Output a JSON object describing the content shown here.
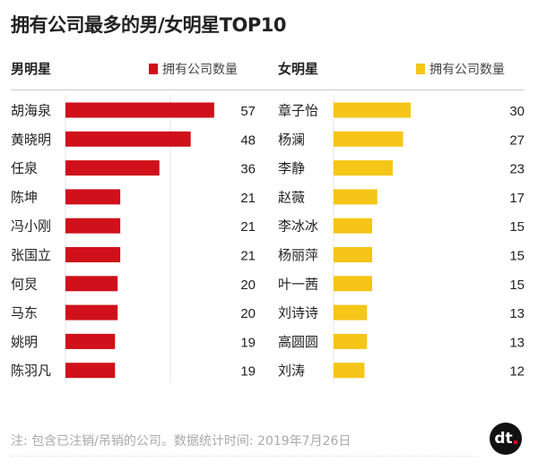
{
  "chart_data": [
    {
      "type": "bar",
      "orientation": "horizontal",
      "group_label": "男明星",
      "legend": "拥有公司数量",
      "color": "#d0101b",
      "categories": [
        "胡海泉",
        "黄晓明",
        "任泉",
        "陈坤",
        "冯小刚",
        "张国立",
        "何炅",
        "马东",
        "姚明",
        "陈羽凡"
      ],
      "values": [
        57,
        48,
        36,
        21,
        21,
        21,
        20,
        20,
        19,
        19
      ]
    },
    {
      "type": "bar",
      "orientation": "horizontal",
      "group_label": "女明星",
      "legend": "拥有公司数量",
      "color": "#f5c518",
      "categories": [
        "章子怡",
        "杨澜",
        "李静",
        "赵薇",
        "李冰冰",
        "杨丽萍",
        "叶一茜",
        "刘诗诗",
        "高圆圆",
        "刘涛"
      ],
      "values": [
        30,
        27,
        23,
        17,
        15,
        15,
        15,
        13,
        13,
        12
      ]
    }
  ],
  "title": "拥有公司最多的男/女明星TOP10",
  "note": "注: 包含已注销/吊销的公司。数据统计时间: 2019年7月26日",
  "logo": "dt"
}
